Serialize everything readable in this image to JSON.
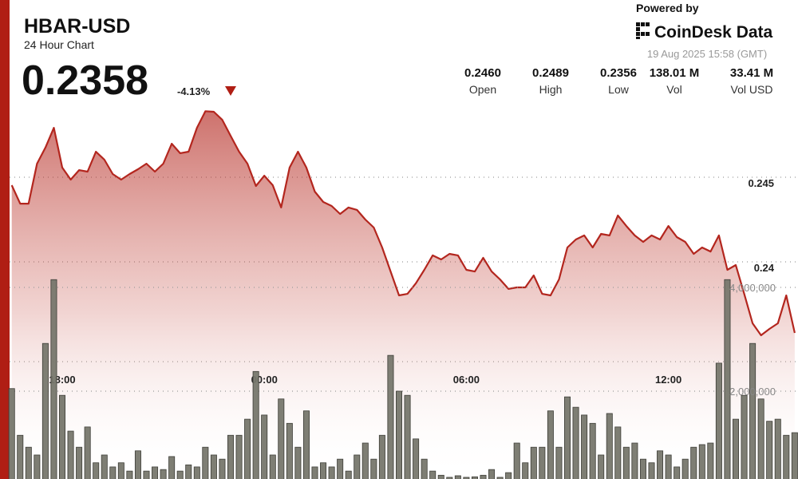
{
  "header": {
    "title": "HBAR-USD",
    "subtitle": "24 Hour Chart",
    "price": "0.2358",
    "change": "-4.13%",
    "powered_by": "Powered by",
    "brand": "CoinDesk Data",
    "timestamp": "19 Aug 2025 15:58 (GMT)",
    "stats": [
      {
        "value": "0.2460",
        "label": "Open"
      },
      {
        "value": "0.2489",
        "label": "High"
      },
      {
        "value": "0.2356",
        "label": "Low"
      },
      {
        "value": "138.01 M",
        "label": "Vol"
      },
      {
        "value": "33.41 M",
        "label": "Vol USD"
      }
    ]
  },
  "chart_data": [
    {
      "type": "line",
      "color": "#b3261e",
      "grid": true,
      "categories": [
        null,
        null,
        null,
        null,
        null,
        null,
        "18:00",
        null,
        null,
        null,
        null,
        null,
        null,
        null,
        null,
        null,
        null,
        null,
        null,
        null,
        null,
        null,
        null,
        null,
        null,
        null,
        null,
        null,
        null,
        null,
        "00:00",
        null,
        null,
        null,
        null,
        null,
        null,
        null,
        null,
        null,
        null,
        null,
        null,
        null,
        null,
        null,
        null,
        null,
        null,
        null,
        null,
        null,
        null,
        null,
        "06:00",
        null,
        null,
        null,
        null,
        null,
        null,
        null,
        null,
        null,
        null,
        null,
        null,
        null,
        null,
        null,
        null,
        null,
        null,
        null,
        null,
        null,
        null,
        null,
        "12:00",
        null,
        null,
        null,
        null,
        null,
        null,
        null,
        null,
        null,
        null,
        null,
        null,
        null,
        null,
        null
      ],
      "values": [
        0.24453,
        0.24344,
        0.24344,
        0.2458,
        0.24675,
        0.24792,
        0.24557,
        0.24486,
        0.24542,
        0.24533,
        0.24651,
        0.24604,
        0.24519,
        0.24486,
        0.24519,
        0.24547,
        0.2458,
        0.24533,
        0.2458,
        0.24698,
        0.24642,
        0.24651,
        0.24792,
        0.2489,
        0.24887,
        0.2484,
        0.24745,
        0.24651,
        0.2458,
        0.24448,
        0.24509,
        0.24453,
        0.24321,
        0.24557,
        0.24651,
        0.24557,
        0.24415,
        0.24354,
        0.2433,
        0.24283,
        0.24321,
        0.24307,
        0.2425,
        0.24203,
        0.24085,
        0.23943,
        0.23802,
        0.23811,
        0.23873,
        0.23953,
        0.24038,
        0.24014,
        0.24047,
        0.24038,
        0.23953,
        0.23943,
        0.24024,
        0.23943,
        0.23896,
        0.2384,
        0.23849,
        0.23849,
        0.2392,
        0.23811,
        0.23802,
        0.23896,
        0.24085,
        0.24132,
        0.24156,
        0.24085,
        0.24165,
        0.24156,
        0.24274,
        0.24212,
        0.24156,
        0.24118,
        0.24156,
        0.24132,
        0.24212,
        0.24146,
        0.24118,
        0.24047,
        0.24085,
        0.24061,
        0.24156,
        0.23953,
        0.23981,
        0.23811,
        0.23637,
        0.23566,
        0.23604,
        0.23637,
        0.23802,
        0.2358
      ],
      "ylim": [
        0.227,
        0.2495
      ],
      "yticks": [
        0.24,
        0.245
      ]
    },
    {
      "type": "bar",
      "color": "#77776d",
      "grid": true,
      "values": [
        2050000,
        1150000,
        920000,
        770000,
        2920000,
        4150000,
        1920000,
        1230000,
        920000,
        1310000,
        620000,
        770000,
        540000,
        620000,
        460000,
        850000,
        460000,
        540000,
        490000,
        740000,
        460000,
        580000,
        540000,
        920000,
        770000,
        690000,
        1150000,
        1150000,
        1460000,
        2380000,
        1540000,
        770000,
        1850000,
        1380000,
        920000,
        1620000,
        540000,
        620000,
        540000,
        690000,
        460000,
        770000,
        1000000,
        690000,
        1150000,
        2690000,
        2000000,
        1920000,
        1080000,
        690000,
        460000,
        380000,
        340000,
        370000,
        340000,
        350000,
        380000,
        490000,
        340000,
        430000,
        1000000,
        620000,
        920000,
        920000,
        1620000,
        920000,
        1890000,
        1690000,
        1540000,
        1380000,
        770000,
        1570000,
        1310000,
        920000,
        1000000,
        690000,
        620000,
        850000,
        770000,
        540000,
        690000,
        920000,
        970000,
        1000000,
        2540000,
        4150000,
        1460000,
        1920000,
        2920000,
        1850000,
        1420000,
        1460000,
        1150000,
        1200000
      ],
      "ylim": [
        0,
        5000000
      ],
      "yticks": [
        {
          "value": 2000000,
          "label": "2,000,000"
        },
        {
          "value": 4000000,
          "label": "4,000,000"
        }
      ]
    }
  ]
}
